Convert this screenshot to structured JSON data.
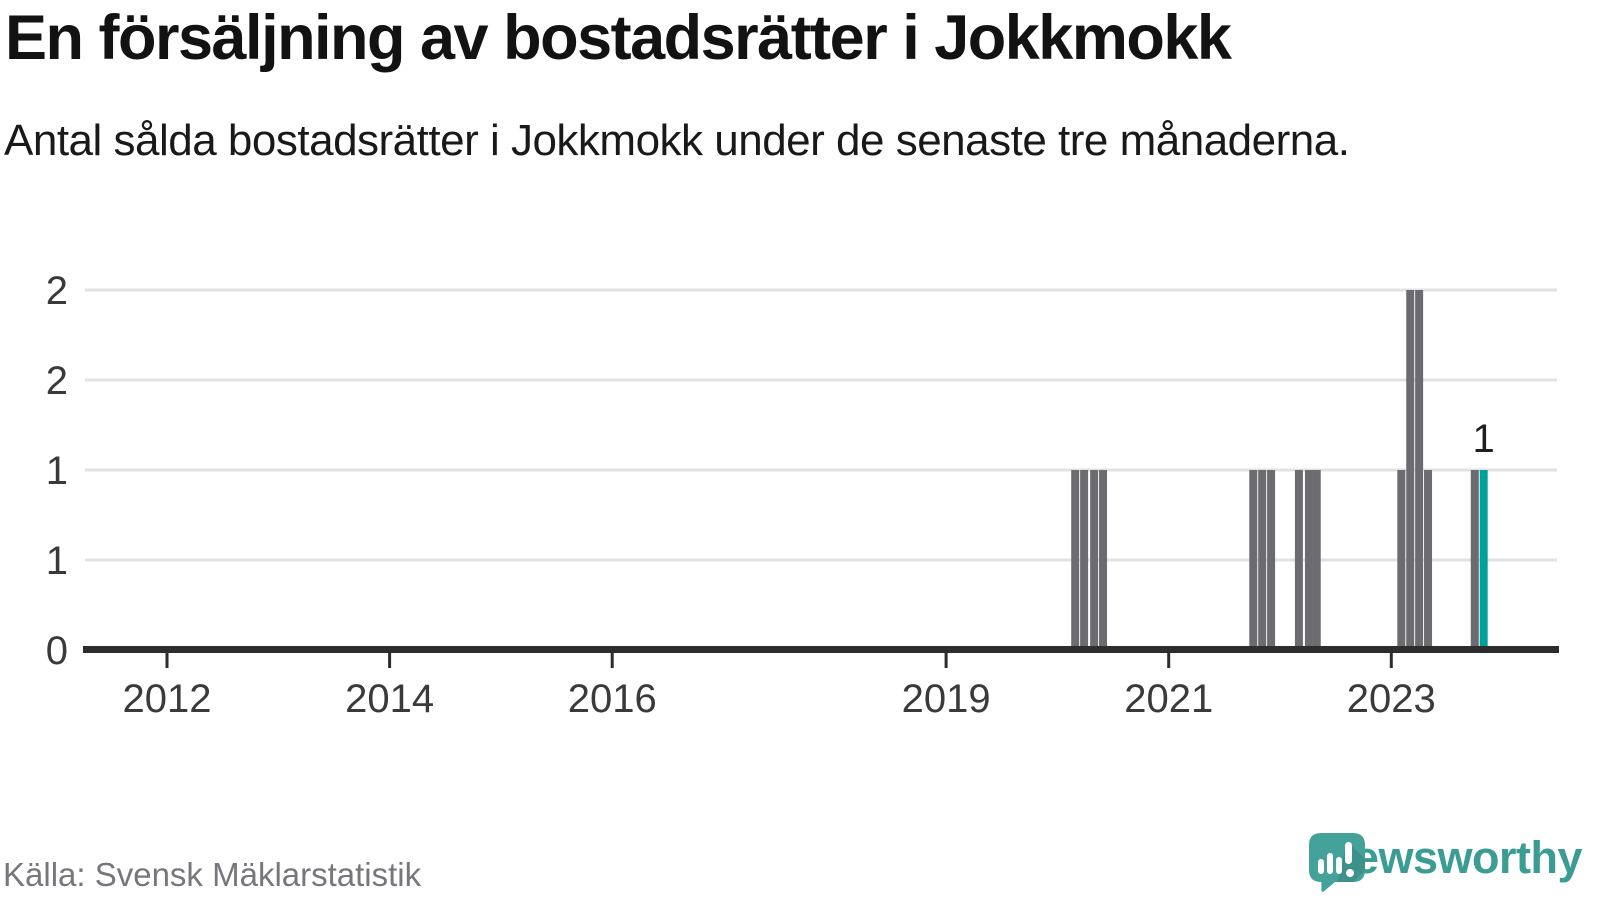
{
  "title": "En försäljning av bostadsrätter i Jokkmokk",
  "subtitle": "Antal sålda bostadsrätter i Jokkmokk under de senaste tre månaderna.",
  "source": "Källa: Svensk Mäklarstatistik",
  "brand": {
    "name": "Newsworthy"
  },
  "colors": {
    "bar": "#6b6b70",
    "highlight": "#00a19b",
    "grid": "#e2e2e2",
    "axis": "#2d2d2d",
    "tick_text": "#3a3a3a",
    "value_text": "#1f1f1f",
    "muted_text": "#76767c",
    "brand_teal": "#3b9c94",
    "brand_icon": "#44a29a"
  },
  "chart_data": {
    "type": "bar",
    "title": "En försäljning av bostadsrätter i Jokkmokk",
    "subtitle": "Antal sålda bostadsrätter i Jokkmokk under de senaste tre månaderna.",
    "xlabel": "",
    "ylabel": "",
    "xlim": [
      2011.25,
      2024.5
    ],
    "ylim": [
      0,
      2
    ],
    "grid": "horizontal",
    "legend": "none",
    "x_ticks": [
      {
        "year": 2012,
        "label": "2012"
      },
      {
        "year": 2014,
        "label": "2014"
      },
      {
        "year": 2016,
        "label": "2016"
      },
      {
        "year": 2019,
        "label": "2019"
      },
      {
        "year": 2021,
        "label": "2021"
      },
      {
        "year": 2023,
        "label": "2023"
      }
    ],
    "y_ticks": [
      {
        "value": 0,
        "label": "0"
      },
      {
        "value": 0.5,
        "label": "1"
      },
      {
        "value": 1,
        "label": "1"
      },
      {
        "value": 1.5,
        "label": "2"
      },
      {
        "value": 2,
        "label": "2"
      }
    ],
    "bars": [
      {
        "x": 2020.16,
        "value": 1
      },
      {
        "x": 2020.24,
        "value": 1
      },
      {
        "x": 2020.33,
        "value": 1
      },
      {
        "x": 2020.41,
        "value": 1
      },
      {
        "x": 2021.76,
        "value": 1
      },
      {
        "x": 2021.84,
        "value": 1
      },
      {
        "x": 2021.92,
        "value": 1
      },
      {
        "x": 2022.17,
        "value": 1
      },
      {
        "x": 2022.26,
        "value": 1
      },
      {
        "x": 2022.33,
        "value": 1
      },
      {
        "x": 2023.09,
        "value": 1
      },
      {
        "x": 2023.17,
        "value": 2
      },
      {
        "x": 2023.25,
        "value": 2
      },
      {
        "x": 2023.33,
        "value": 1
      },
      {
        "x": 2023.75,
        "value": 1
      },
      {
        "x": 2023.83,
        "value": 1,
        "highlight": true,
        "label": "1"
      }
    ]
  }
}
